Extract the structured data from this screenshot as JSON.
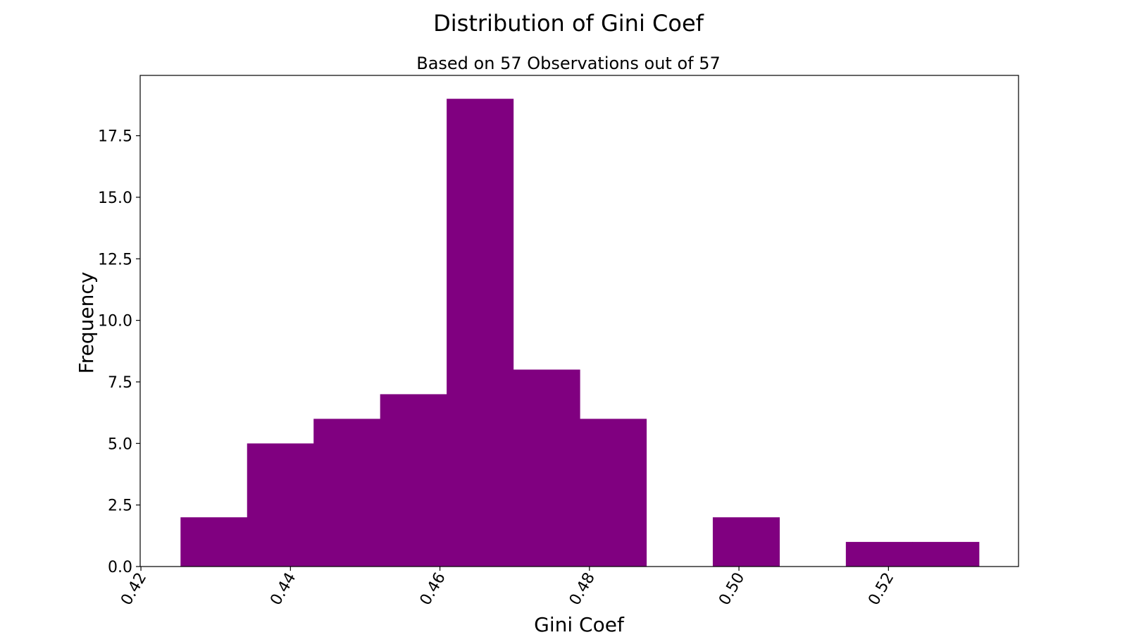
{
  "chart_data": {
    "type": "bar",
    "subtype": "histogram",
    "title": "Distribution of Gini Coef",
    "subtitle": "Based on 57 Observations out of 57",
    "xlabel": "Gini Coef",
    "ylabel": "Frequency",
    "bin_edges": [
      0.4253,
      0.4342,
      0.4431,
      0.452,
      0.4609,
      0.4698,
      0.4787,
      0.4876,
      0.4965,
      0.5054,
      0.5143,
      0.5232,
      0.5321
    ],
    "values": [
      2,
      5,
      6,
      7,
      19,
      8,
      6,
      0,
      2,
      0,
      1,
      1
    ],
    "xlim": [
      0.4199,
      0.5374
    ],
    "ylim": [
      0,
      19.95
    ],
    "xticks": [
      0.42,
      0.44,
      0.46,
      0.48,
      0.5,
      0.52
    ],
    "xtick_labels": [
      "0.42",
      "0.44",
      "0.46",
      "0.48",
      "0.50",
      "0.52"
    ],
    "yticks": [
      0,
      2.5,
      5,
      7.5,
      10,
      12.5,
      15,
      17.5
    ],
    "ytick_labels": [
      "0.0",
      "2.5",
      "5.0",
      "7.5",
      "10.0",
      "12.5",
      "15.0",
      "17.5"
    ],
    "bar_color": "#800080",
    "grid": false,
    "legend": "none"
  }
}
